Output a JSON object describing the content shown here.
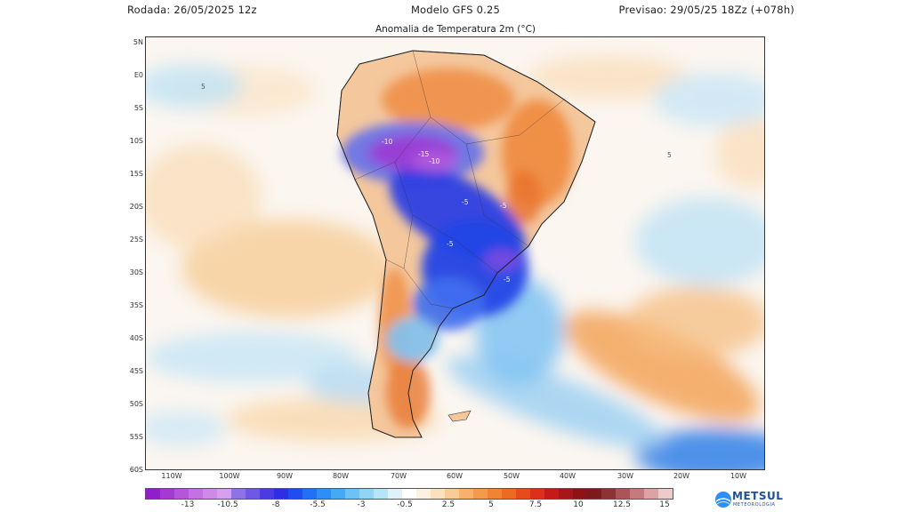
{
  "header": {
    "run": "Rodada: 26/05/2025 12z",
    "model": "Modelo GFS 0.25",
    "valid": "Previsao: 29/05/25 18Zz (+078h)"
  },
  "map": {
    "title": "Anomalia de Temperatura 2m (°C)",
    "lat_labels": [
      "5N",
      "E0",
      "5S",
      "10S",
      "15S",
      "20S",
      "25S",
      "30S",
      "35S",
      "40S",
      "45S",
      "50S",
      "55S",
      "60S"
    ],
    "lon_labels": [
      "110W",
      "100W",
      "90W",
      "80W",
      "70W",
      "60W",
      "50W",
      "40W",
      "30W",
      "20W",
      "10W"
    ],
    "contour_labels": [
      "-10",
      "-15",
      "-10",
      "-5",
      "-5",
      "-5",
      "-5",
      "5",
      "5"
    ]
  },
  "colorbar": {
    "colors": [
      "#8f1fc9",
      "#a43ad2",
      "#b556da",
      "#c472e2",
      "#cf8ae8",
      "#d89fee",
      "#8f73e6",
      "#6f58e3",
      "#4a3ce0",
      "#2d2fe5",
      "#1f4df0",
      "#2470f5",
      "#2d8ff5",
      "#46a9f4",
      "#6cc1f5",
      "#92d4f6",
      "#b8e4f8",
      "#ddf2fb",
      "#ffffff",
      "#fff1df",
      "#fde1bf",
      "#f9cb96",
      "#f6b16c",
      "#f39a4c",
      "#f08433",
      "#ec6a22",
      "#e64b1d",
      "#dc2f1d",
      "#c41a1a",
      "#a81717",
      "#8c1414",
      "#7a1a1a",
      "#8c3434",
      "#a95656",
      "#c47b7b",
      "#dba3a3",
      "#eecbcb"
    ],
    "ticks": [
      "-13",
      "-10.5",
      "-8",
      "-5.5",
      "-3",
      "-0.5",
      "2.5",
      "5",
      "7.5",
      "10",
      "12.5",
      "15"
    ]
  },
  "logo": {
    "name": "METSUL",
    "sub": "METEOROLOGIA"
  }
}
